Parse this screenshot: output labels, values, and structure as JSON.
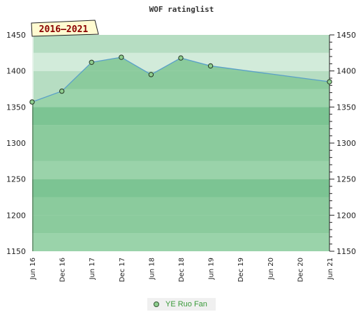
{
  "chart_data": {
    "type": "area",
    "title": "WOF ratinglist",
    "period_label": "2016–2021",
    "y_ticks": [
      1150,
      1200,
      1250,
      1300,
      1350,
      1400,
      1450
    ],
    "ylim": [
      1150,
      1450
    ],
    "x_ticks": [
      "Jun 16",
      "Dec 16",
      "Jun 17",
      "Dec 17",
      "Jun 18",
      "Dec 18",
      "Jun 19",
      "Dec 19",
      "Jun 20",
      "Dec 20",
      "Jun 21"
    ],
    "series": [
      {
        "name": "YE Ruo Fan",
        "color": "#5aa0c8",
        "fill": "#7cc48f",
        "marker": "#8fce8f",
        "x": [
          "Jun 16",
          "Dec 16",
          "Jun 17",
          "Dec 17",
          "Jun 18",
          "Dec 18",
          "Jun 19",
          "Jun 21"
        ],
        "values": [
          1357,
          1372,
          1412,
          1419,
          1395,
          1418,
          1407,
          1385
        ]
      }
    ],
    "grid": true,
    "legend": "bottom-center"
  }
}
